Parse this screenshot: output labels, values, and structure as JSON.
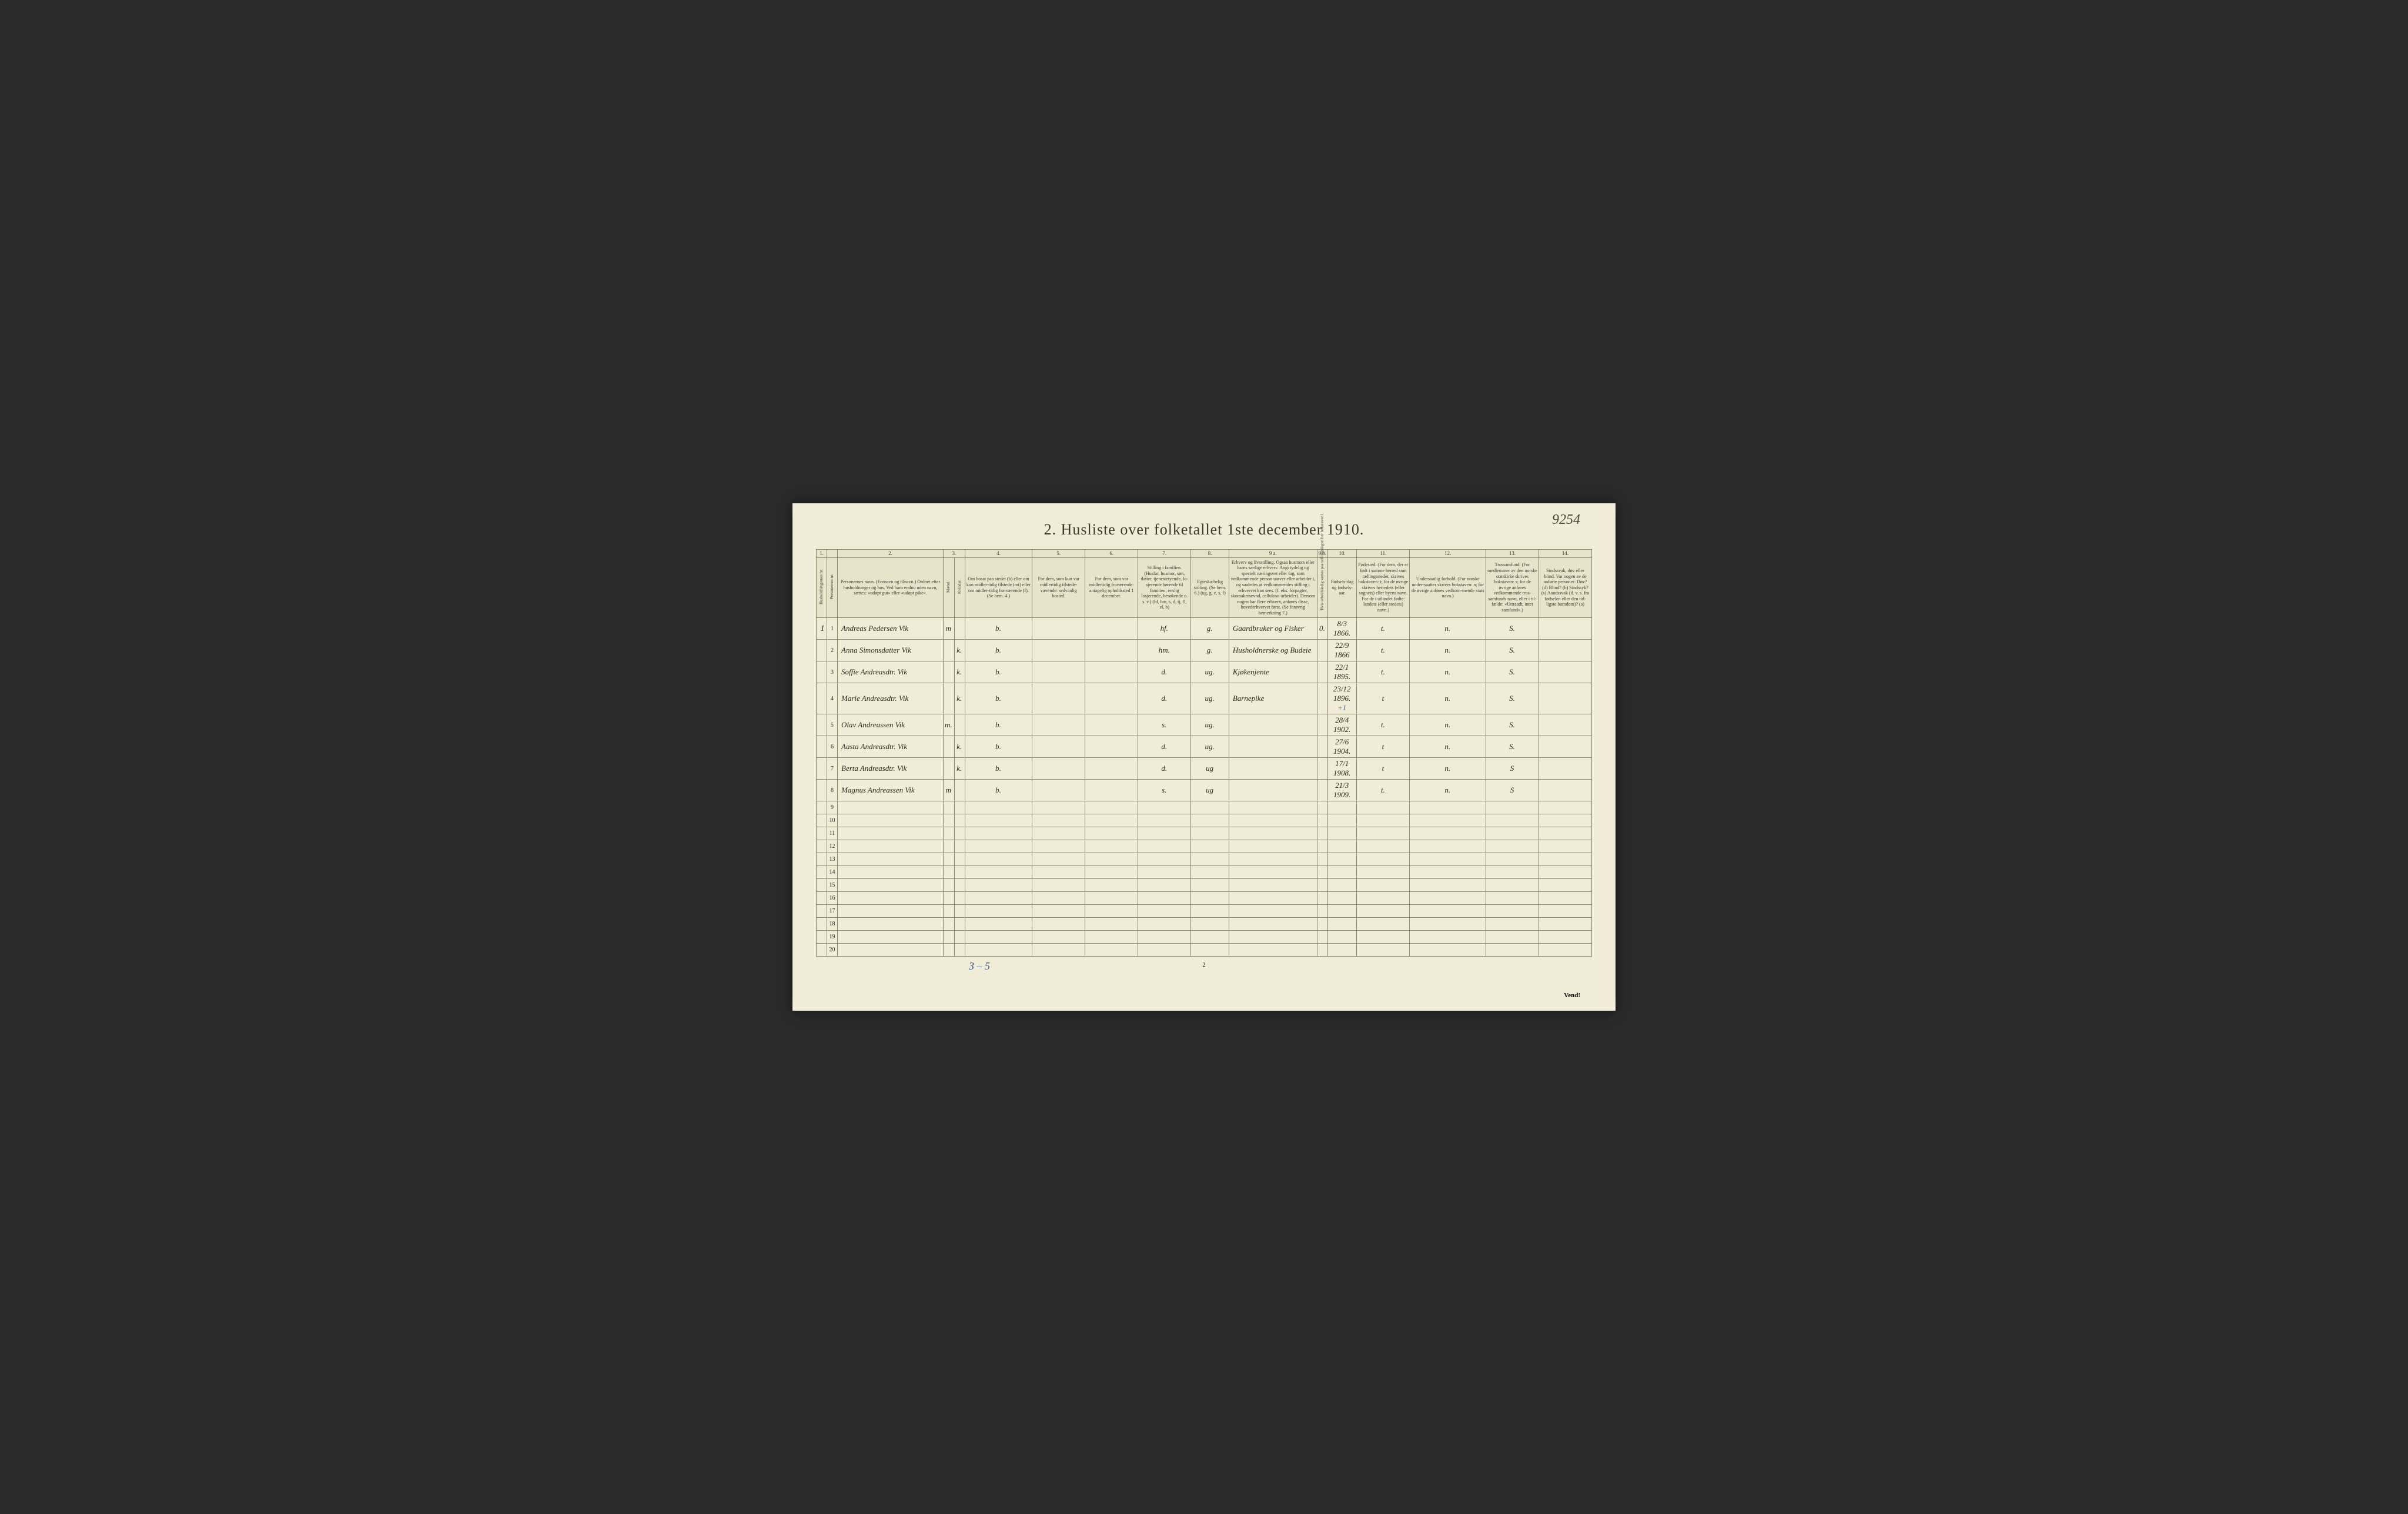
{
  "handwritten_corner": "9254",
  "title": "2.  Husliste over folketallet 1ste december 1910.",
  "column_numbers": [
    "1.",
    "",
    "2.",
    "3.",
    "",
    "4.",
    "5.",
    "6.",
    "7.",
    "8.",
    "9 a.",
    "9 b.",
    "10.",
    "11.",
    "12.",
    "13.",
    "14."
  ],
  "headers": {
    "c1": "Husholdningernes nr.",
    "c1b": "Personernes nr.",
    "c2": "Personernes navn.\n(Fornavn og tilnavn.)\nOrdnet efter husholdninger og hus.\nVed barn endnu uden navn, sættes: «udøpt gut» eller «udøpt pike».",
    "c3": "Kjøn.",
    "c3m": "Mænd.",
    "c3k": "Kvinder.",
    "c4": "Om bosat paa stedet (b) eller om kun midler-tidig tilstede (mt) eller om midler-tidig fra-værende (f). (Se bem. 4.)",
    "c5": "For dem, som kun var midlertidig tilstede-værende:\nsedvanlig bosted.",
    "c6": "For dem, som var midlertidig fraværende:\nantagelig opholdssted 1 december.",
    "c7": "Stilling i familien.\n(Husfar, husmor, søn, datter, tjenestetyende, lo-sjerende hørende til familien, enslig losjerende, besøkende o. s. v.)\n(hf, hm, s, d, tj, fl, el, b)",
    "c8": "Egteska-belig stilling.\n(Se bem. 6.)\n(ug, g, e, s, f)",
    "c9a": "Erhverv og livsstilling.\nOgsaa husmors eller barns særlige erhverv.\nAngi tydelig og specielt næringsvet eller fag, som vedkommende person utøver eller arbeider i, og saaledes at vedkommendes stilling i erhvervet kan sees. (f. eks. forpagter, skomakersevnd, celluloso-arbeider). Dersom nogen har flere erhverv, anføres disse, hovederhvervet først.\n(Se forøvrig bemerkning 7.)",
    "c9b": "Hvis arbeidsledig sættes paa tællingsdagen her bokstaven l.",
    "c10": "Fødsels-dag og fødsels-aar.",
    "c11": "Fødested.\n(For dem, der er født i samme herred som tællingsstedet, skrives bokstaven: t; for de øvrige skrives herredets (eller sognets) eller byens navn. For de i utlandet fødte: landets (eller stedets) navn.)",
    "c12": "Undersaatlig forhold.\n(For norske under-saatter skrives bokstaven: n; for de øvrige anføres vedkom-mende stats navn.)",
    "c13": "Trossamfund.\n(For medlemmer av den norske statskirke skrives bokstaven: s; for de øvrige anføres vedkommende tros-samfunds navn, eller i til-fælde: «Uttraadt, intet samfund».)",
    "c14": "Sindssvak, døv eller blind.\nVar nogen av de anførte personer:\nDøv? (d)\nBlind? (b)\nSindssyk? (s)\nAandssvak (d. v. s. fra fødselen eller den tid-ligste barndom)? (a)"
  },
  "rows": [
    {
      "hh": "1",
      "pn": "1",
      "name": "Andreas Pedersen Vik",
      "m": "m",
      "k": "",
      "res": "b.",
      "c5": "",
      "c6": "",
      "fam": "hf.",
      "mar": "g.",
      "occ": "Gaardbruker og Fisker",
      "l": "0.",
      "dob": "8/3 1866.",
      "bp": "t.",
      "nat": "n.",
      "rel": "S.",
      "dis": ""
    },
    {
      "hh": "",
      "pn": "2",
      "name": "Anna Simonsdatter Vik",
      "m": "",
      "k": "k.",
      "res": "b.",
      "c5": "",
      "c6": "",
      "fam": "hm.",
      "mar": "g.",
      "occ": "Husholdnerske og Budeie",
      "l": "",
      "dob": "22/9 1866",
      "bp": "t.",
      "nat": "n.",
      "rel": "S.",
      "dis": ""
    },
    {
      "hh": "",
      "pn": "3",
      "name": "Soffie Andreasdtr. Vik",
      "m": "",
      "k": "k.",
      "res": "b.",
      "c5": "",
      "c6": "",
      "fam": "d.",
      "mar": "ug.",
      "occ": "Kjøkenjente",
      "l": "",
      "dob": "22/1 1895.",
      "bp": "t.",
      "nat": "n.",
      "rel": "S.",
      "dis": ""
    },
    {
      "hh": "",
      "pn": "4",
      "name": "Marie Andreasdtr. Vik",
      "m": "",
      "k": "k.",
      "res": "b.",
      "c5": "",
      "c6": "",
      "fam": "d.",
      "mar": "ug.",
      "occ": "Barnepike",
      "l": "",
      "dob": "23/12 1896.",
      "dobnote": "+1",
      "bp": "t",
      "nat": "n.",
      "rel": "S.",
      "dis": ""
    },
    {
      "hh": "",
      "pn": "5",
      "name": "Olav Andreassen Vik",
      "m": "m.",
      "k": "",
      "res": "b.",
      "c5": "",
      "c6": "",
      "fam": "s.",
      "mar": "ug.",
      "occ": "",
      "l": "",
      "dob": "28/4 1902.",
      "bp": "t.",
      "nat": "n.",
      "rel": "S.",
      "dis": ""
    },
    {
      "hh": "",
      "pn": "6",
      "name": "Aasta Andreasdtr. Vik",
      "m": "",
      "k": "k.",
      "res": "b.",
      "c5": "",
      "c6": "",
      "fam": "d.",
      "mar": "ug.",
      "occ": "",
      "l": "",
      "dob": "27/6 1904.",
      "bp": "t",
      "nat": "n.",
      "rel": "S.",
      "dis": ""
    },
    {
      "hh": "",
      "pn": "7",
      "name": "Berta Andreasdtr. Vik",
      "m": "",
      "k": "k.",
      "res": "b.",
      "c5": "",
      "c6": "",
      "fam": "d.",
      "mar": "ug",
      "occ": "",
      "l": "",
      "dob": "17/1 1908.",
      "bp": "t",
      "nat": "n.",
      "rel": "S",
      "dis": ""
    },
    {
      "hh": "",
      "pn": "8",
      "name": "Magnus Andreassen Vik",
      "m": "m",
      "k": "",
      "res": "b.",
      "c5": "",
      "c6": "",
      "fam": "s.",
      "mar": "ug",
      "occ": "",
      "l": "",
      "dob": "21/3 1909.",
      "bp": "t.",
      "nat": "n.",
      "rel": "S",
      "dis": ""
    }
  ],
  "empty_row_numbers": [
    "9",
    "10",
    "11",
    "12",
    "13",
    "14",
    "15",
    "16",
    "17",
    "18",
    "19",
    "20"
  ],
  "footer_handwritten": "3 – 5",
  "footer_pagenum": "2",
  "vend": "Vend!",
  "colors": {
    "page_bg": "#f0ecd8",
    "border": "#8a8a6a",
    "text": "#3a3a2a",
    "handwriting": "#2a2a1a",
    "blue_ink": "#3a5a9a"
  }
}
